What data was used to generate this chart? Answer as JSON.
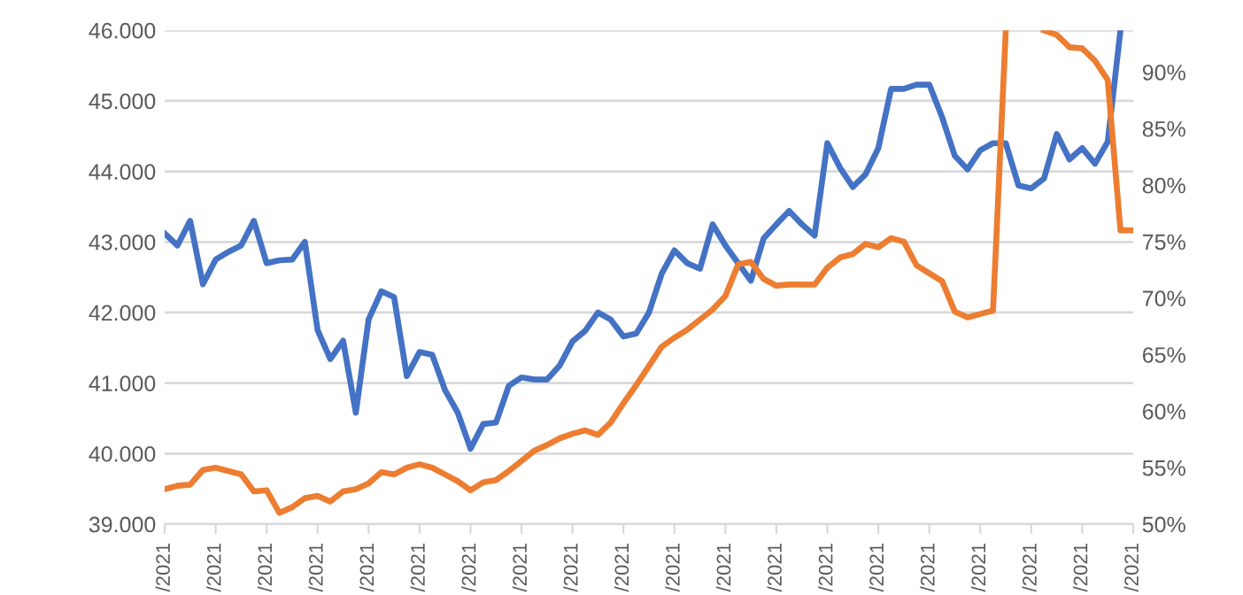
{
  "chart_data": {
    "type": "line",
    "categories": [
      "/2021",
      null,
      null,
      null,
      "/2021",
      null,
      null,
      null,
      "/2021",
      null,
      null,
      null,
      "/2021",
      null,
      null,
      null,
      "/2021",
      null,
      null,
      null,
      "/2021",
      null,
      null,
      null,
      "/2021",
      null,
      null,
      null,
      "/2021",
      null,
      null,
      null,
      "/2021",
      null,
      null,
      null,
      "/2021",
      null,
      null,
      null,
      "/2021",
      null,
      null,
      null,
      "/2021",
      null,
      null,
      null,
      "/2021",
      null,
      null,
      null,
      "/2021",
      null,
      null,
      null,
      "/2021",
      null,
      null,
      null,
      "/2021",
      null,
      null,
      null,
      "/2021",
      null,
      null,
      null,
      "/2021",
      null,
      null,
      null,
      "/2021",
      null,
      null,
      null,
      "/2021"
    ],
    "ylim": [
      39000,
      46000
    ],
    "yticks": [
      {
        "value": 39000,
        "label": "39.000"
      },
      {
        "value": 40000,
        "label": "40.000"
      },
      {
        "value": 41000,
        "label": "41.000"
      },
      {
        "value": 42000,
        "label": "42.000"
      },
      {
        "value": 43000,
        "label": "43.000"
      },
      {
        "value": 44000,
        "label": "44.000"
      },
      {
        "value": 45000,
        "label": "45.000"
      },
      {
        "value": 46000,
        "label": "46.000"
      }
    ],
    "y2lim": [
      50,
      93.7
    ],
    "y2ticks": [
      {
        "value": 50,
        "label": "50%"
      },
      {
        "value": 55,
        "label": "55%"
      },
      {
        "value": 60,
        "label": "60%"
      },
      {
        "value": 65,
        "label": "65%"
      },
      {
        "value": 70,
        "label": "70%"
      },
      {
        "value": 75,
        "label": "75%"
      },
      {
        "value": 80,
        "label": "80%"
      },
      {
        "value": 85,
        "label": "85%"
      },
      {
        "value": 90,
        "label": "90%"
      }
    ],
    "grid": "y",
    "marker": "none",
    "line_style": "solid",
    "series": [
      {
        "color": "#4472c4",
        "values": [
          43120,
          42950,
          43300,
          42400,
          42750,
          42860,
          42950,
          43300,
          42700,
          42740,
          42750,
          43000,
          41750,
          41340,
          41600,
          40580,
          41900,
          42300,
          42220,
          41100,
          41440,
          41400,
          40900,
          40580,
          40070,
          40420,
          40440,
          40960,
          41080,
          41050,
          41050,
          41250,
          41590,
          41740,
          42000,
          41900,
          41660,
          41700,
          42000,
          42550,
          42880,
          42700,
          42620,
          43250,
          42950,
          42700,
          42450,
          43050,
          43250,
          43440,
          43250,
          43090,
          44400,
          44050,
          43780,
          43960,
          44330,
          45170,
          45170,
          45230,
          45230,
          44770,
          44220,
          44030,
          44300,
          44400,
          44400,
          43800,
          43760,
          43900,
          44530,
          44170,
          44330,
          44110,
          44420,
          46000,
          null
        ]
      },
      {
        "color": "#ed7d31",
        "axis": "y2",
        "values": [
          53.1,
          53.4,
          53.5,
          54.8,
          55.0,
          54.7,
          54.4,
          52.9,
          53.0,
          51.0,
          51.5,
          52.3,
          52.5,
          52.0,
          52.9,
          53.1,
          53.6,
          54.6,
          54.4,
          55.0,
          55.3,
          55.0,
          54.4,
          53.8,
          53.0,
          53.7,
          53.9,
          54.7,
          55.6,
          56.5,
          57.0,
          57.6,
          58.0,
          58.3,
          57.9,
          59.0,
          60.7,
          62.3,
          64.0,
          65.7,
          66.5,
          67.2,
          68.1,
          69.0,
          70.2,
          73.0,
          73.2,
          71.7,
          71.1,
          71.2,
          71.2,
          71.2,
          72.7,
          73.6,
          73.9,
          74.8,
          74.5,
          75.3,
          75.0,
          72.9,
          72.2,
          71.5,
          68.8,
          68.3,
          68.6,
          68.9,
          93.7,
          null,
          null,
          93.7,
          93.3,
          92.2,
          92.1,
          91.0,
          89.3,
          76.0,
          76.0
        ]
      }
    ]
  }
}
